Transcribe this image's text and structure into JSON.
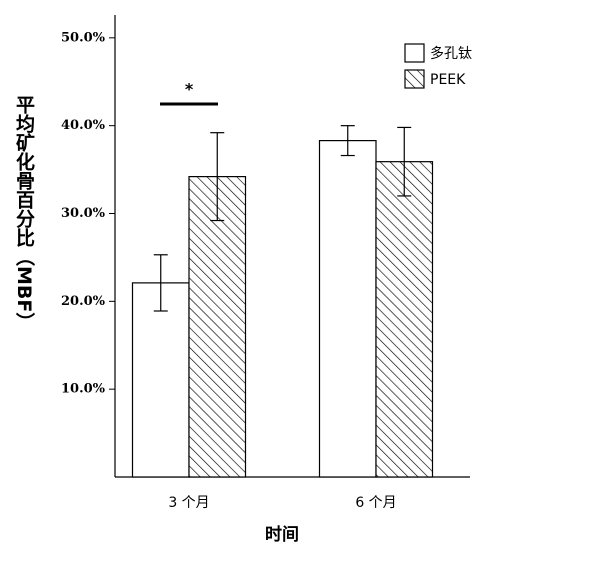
{
  "chart_data": {
    "type": "bar",
    "x_label": "时间",
    "y_label": "平均矿化骨百分比（MBF）",
    "categories": [
      "3 个月",
      "6 个月"
    ],
    "series": [
      {
        "name": "多孔钛",
        "color": "#ffffff",
        "hatch": false,
        "values": [
          22.1,
          38.3
        ],
        "errors": [
          3.2,
          1.7
        ]
      },
      {
        "name": "PEEK",
        "color": "#000000",
        "hatch": true,
        "values": [
          34.2,
          35.9
        ],
        "errors": [
          5.0,
          3.9
        ]
      }
    ],
    "ylim": [
      0,
      52.6
    ],
    "yticks": [
      {
        "value": 10,
        "label": "10.0%"
      },
      {
        "value": 20,
        "label": "20.0%"
      },
      {
        "value": 30,
        "label": "30.0%"
      },
      {
        "value": 40,
        "label": "40.0%"
      },
      {
        "value": 50,
        "label": "50.0%"
      }
    ],
    "legend": "top-right",
    "annotations": [
      {
        "text": "*",
        "category": 0
      }
    ]
  }
}
